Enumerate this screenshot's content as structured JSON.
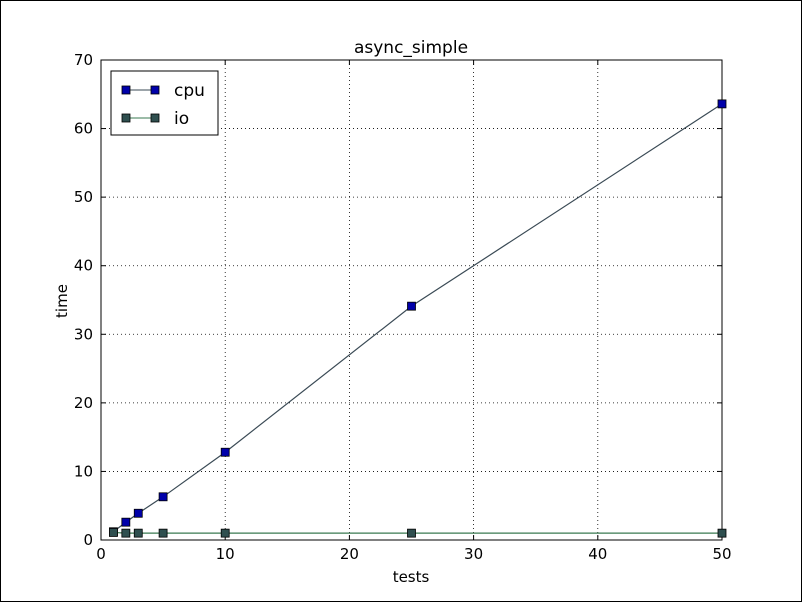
{
  "chart_data": {
    "type": "line",
    "title": "async_simple",
    "xlabel": "tests",
    "ylabel": "time",
    "xlim": [
      0,
      50
    ],
    "ylim": [
      0,
      70
    ],
    "xticks": [
      0,
      10,
      20,
      30,
      40,
      50
    ],
    "yticks": [
      0,
      10,
      20,
      30,
      40,
      50,
      60,
      70
    ],
    "grid": true,
    "legend_position": "top-left",
    "series": [
      {
        "name": "cpu",
        "color": "#0000aa",
        "line_color": "#3a4a55",
        "marker": "square",
        "x": [
          1,
          2,
          3,
          5,
          10,
          25,
          50
        ],
        "y": [
          1.2,
          2.6,
          3.9,
          6.3,
          12.8,
          34.1,
          63.6
        ]
      },
      {
        "name": "io",
        "color": "#2f4f4f",
        "line_color": "#3a7a50",
        "marker": "square",
        "x": [
          1,
          2,
          3,
          5,
          10,
          25,
          50
        ],
        "y": [
          1.1,
          1.0,
          1.0,
          1.0,
          1.0,
          1.0,
          1.0
        ]
      }
    ]
  }
}
